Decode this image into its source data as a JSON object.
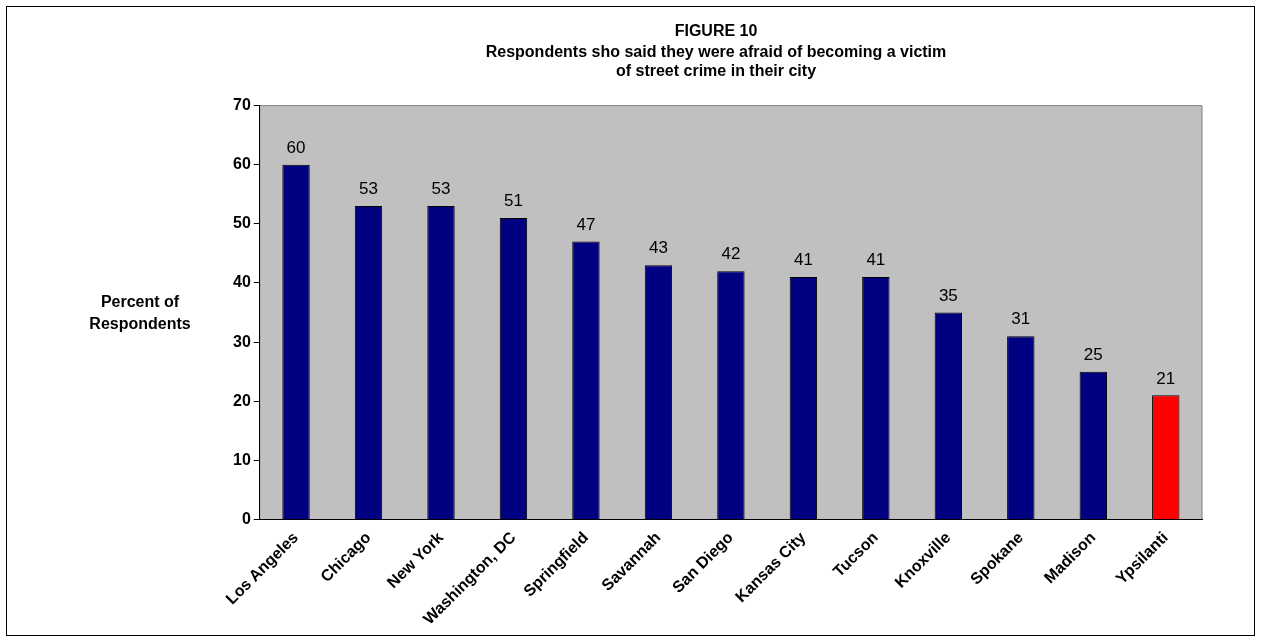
{
  "chart_data": {
    "type": "bar",
    "title": "FIGURE 10",
    "subtitle": "Respondents sho said they were afraid of becoming a victim of street crime in their city",
    "ylabel": "Percent of Respondents",
    "categories": [
      "Los Angeles",
      "Chicago",
      "New York",
      "Washington, DC",
      "Springfield",
      "Savannah",
      "San Diego",
      "Kansas City",
      "Tucson",
      "Knoxville",
      "Spokane",
      "Madison",
      "Ypsilanti"
    ],
    "values": [
      60,
      53,
      53,
      51,
      47,
      43,
      42,
      41,
      41,
      35,
      31,
      25,
      21
    ],
    "colors": [
      "#000080",
      "#000080",
      "#000080",
      "#000080",
      "#000080",
      "#000080",
      "#000080",
      "#000080",
      "#000080",
      "#000080",
      "#000080",
      "#000080",
      "#ff0000"
    ],
    "ylim": [
      0,
      70
    ],
    "yticks": [
      0,
      10,
      20,
      30,
      40,
      50,
      60,
      70
    ],
    "grid": false,
    "legend": false,
    "data_labels": true
  }
}
